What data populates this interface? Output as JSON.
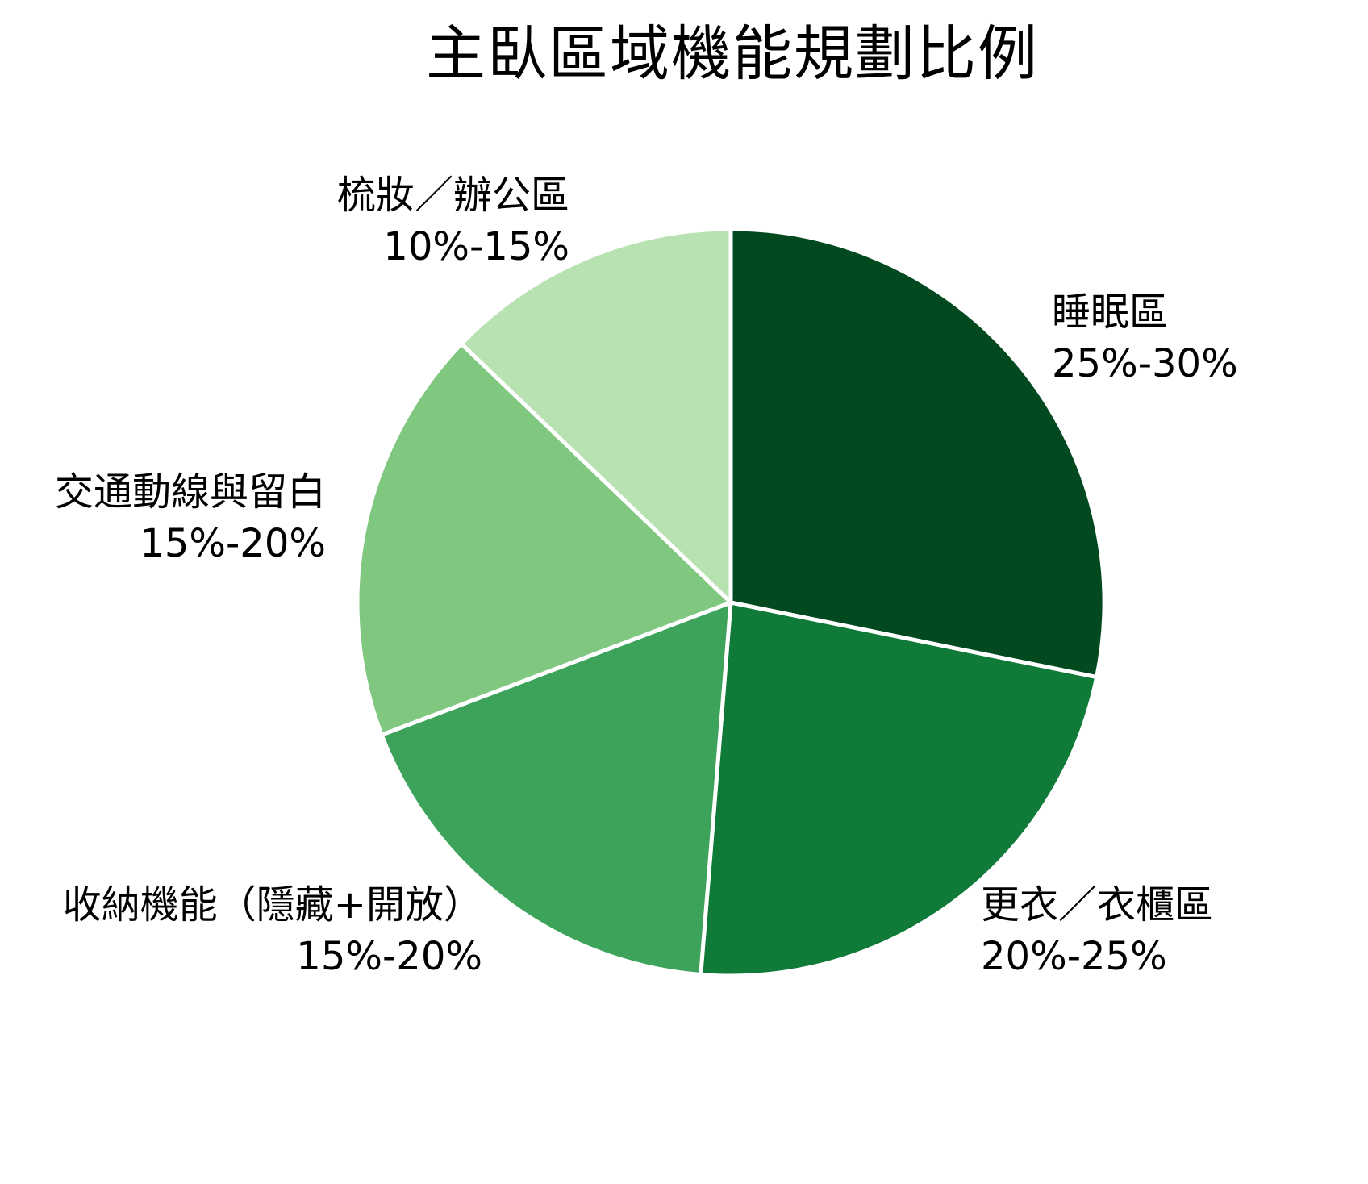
{
  "chart_data": {
    "type": "pie",
    "title": "主臥區域機能規劃比例",
    "start_angle_deg": 0,
    "direction": "clockwise",
    "center": [
      906,
      747
    ],
    "radius": 463,
    "slices": [
      {
        "label": "睡眠區",
        "range_text": "25%-30%",
        "value": 27.5,
        "share_pct": 28.2,
        "color": "#03491f"
      },
      {
        "label": "更衣／衣櫃區",
        "range_text": "20%-25%",
        "value": 22.5,
        "share_pct": 23.1,
        "color": "#107a38"
      },
      {
        "label": "收納機能（隱藏+開放）",
        "range_text": "15%-20%",
        "value": 17.5,
        "share_pct": 17.9,
        "color": "#3da35b"
      },
      {
        "label": "交通動線與留白",
        "range_text": "15%-20%",
        "value": 17.5,
        "share_pct": 17.9,
        "color": "#80c780"
      },
      {
        "label": "梳妝／辦公區",
        "range_text": "10%-15%",
        "value": 12.5,
        "share_pct": 12.8,
        "color": "#b9e2b2"
      }
    ],
    "legend": "none (labels placed outside slices)",
    "grid": false
  }
}
